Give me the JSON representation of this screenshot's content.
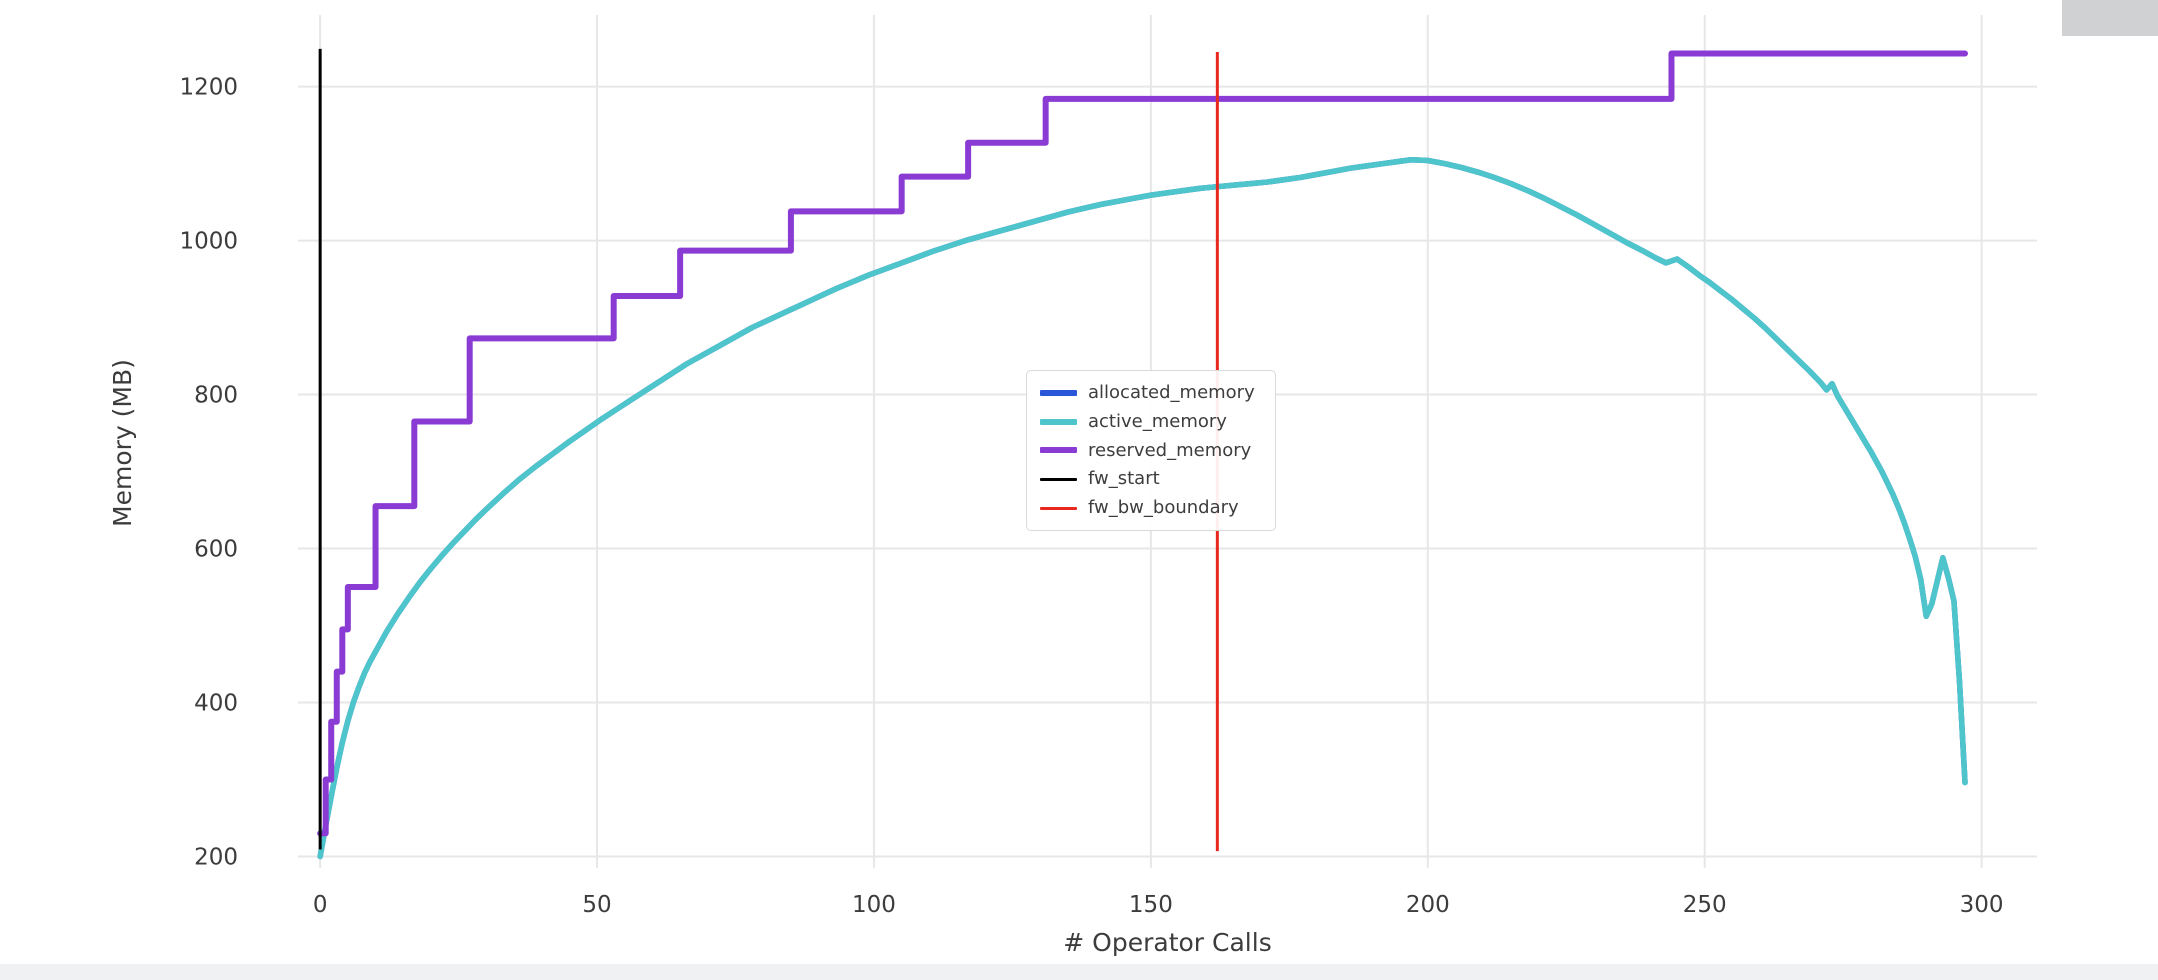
{
  "chart_data": {
    "type": "line",
    "title": "",
    "xlabel": "# Operator Calls",
    "ylabel": "Memory (MB)",
    "xlim": [
      -4,
      310
    ],
    "ylim": [
      185,
      1293
    ],
    "xticks": [
      0,
      50,
      100,
      150,
      200,
      250,
      300
    ],
    "yticks": [
      200,
      400,
      600,
      800,
      1000,
      1200
    ],
    "grid": true,
    "grid_color": "#e7e7e7",
    "legend_position": "center",
    "series": [
      {
        "name": "allocated_memory",
        "color": "#2a56d9",
        "style": "line",
        "points_same_as": "active_memory"
      },
      {
        "name": "active_memory",
        "color": "#4ec5cb",
        "style": "line",
        "points": [
          [
            0,
            200
          ],
          [
            1,
            240
          ],
          [
            2,
            278
          ],
          [
            3,
            315
          ],
          [
            4,
            348
          ],
          [
            5,
            376
          ],
          [
            6,
            400
          ],
          [
            7,
            420
          ],
          [
            8,
            438
          ],
          [
            9,
            453
          ],
          [
            10,
            466
          ],
          [
            12,
            492
          ],
          [
            14,
            515
          ],
          [
            16,
            536
          ],
          [
            18,
            556
          ],
          [
            20,
            574
          ],
          [
            22,
            591
          ],
          [
            24,
            607
          ],
          [
            26,
            622
          ],
          [
            28,
            637
          ],
          [
            30,
            651
          ],
          [
            33,
            671
          ],
          [
            36,
            690
          ],
          [
            39,
            707
          ],
          [
            42,
            723
          ],
          [
            45,
            739
          ],
          [
            48,
            754
          ],
          [
            51,
            769
          ],
          [
            54,
            783
          ],
          [
            57,
            797
          ],
          [
            60,
            811
          ],
          [
            63,
            825
          ],
          [
            66,
            839
          ],
          [
            69,
            851
          ],
          [
            72,
            863
          ],
          [
            75,
            875
          ],
          [
            78,
            887
          ],
          [
            81,
            897
          ],
          [
            84,
            907
          ],
          [
            87,
            917
          ],
          [
            90,
            927
          ],
          [
            93,
            937
          ],
          [
            96,
            946
          ],
          [
            99,
            955
          ],
          [
            102,
            963
          ],
          [
            105,
            971
          ],
          [
            108,
            979
          ],
          [
            111,
            987
          ],
          [
            114,
            994
          ],
          [
            117,
            1001
          ],
          [
            120,
            1007
          ],
          [
            123,
            1013
          ],
          [
            126,
            1019
          ],
          [
            129,
            1025
          ],
          [
            132,
            1031
          ],
          [
            135,
            1037
          ],
          [
            138,
            1042
          ],
          [
            141,
            1047
          ],
          [
            144,
            1051
          ],
          [
            147,
            1055
          ],
          [
            150,
            1059
          ],
          [
            153,
            1062
          ],
          [
            156,
            1065
          ],
          [
            159,
            1068
          ],
          [
            162,
            1070
          ],
          [
            165,
            1072
          ],
          [
            168,
            1074
          ],
          [
            171,
            1076
          ],
          [
            174,
            1079
          ],
          [
            177,
            1082
          ],
          [
            180,
            1086
          ],
          [
            183,
            1090
          ],
          [
            186,
            1094
          ],
          [
            189,
            1097
          ],
          [
            192,
            1100
          ],
          [
            195,
            1103
          ],
          [
            197,
            1105
          ],
          [
            200,
            1104
          ],
          [
            203,
            1100
          ],
          [
            206,
            1095
          ],
          [
            209,
            1089
          ],
          [
            212,
            1082
          ],
          [
            215,
            1074
          ],
          [
            218,
            1065
          ],
          [
            221,
            1055
          ],
          [
            224,
            1044
          ],
          [
            227,
            1033
          ],
          [
            230,
            1021
          ],
          [
            233,
            1009
          ],
          [
            236,
            997
          ],
          [
            239,
            986
          ],
          [
            241,
            978
          ],
          [
            243,
            971
          ],
          [
            245,
            976
          ],
          [
            247,
            966
          ],
          [
            249,
            955
          ],
          [
            251,
            945
          ],
          [
            253,
            934
          ],
          [
            255,
            923
          ],
          [
            257,
            911
          ],
          [
            259,
            899
          ],
          [
            261,
            886
          ],
          [
            263,
            872
          ],
          [
            265,
            858
          ],
          [
            267,
            844
          ],
          [
            269,
            830
          ],
          [
            271,
            815
          ],
          [
            272,
            806
          ],
          [
            273,
            814
          ],
          [
            274,
            798
          ],
          [
            276,
            774
          ],
          [
            278,
            750
          ],
          [
            280,
            726
          ],
          [
            282,
            700
          ],
          [
            284,
            670
          ],
          [
            285,
            653
          ],
          [
            286,
            634
          ],
          [
            287,
            613
          ],
          [
            288,
            590
          ],
          [
            289,
            560
          ],
          [
            290,
            512
          ],
          [
            291,
            528
          ],
          [
            292,
            558
          ],
          [
            293,
            588
          ],
          [
            294,
            562
          ],
          [
            295,
            532
          ],
          [
            296,
            428
          ],
          [
            297,
            296
          ]
        ]
      },
      {
        "name": "reserved_memory",
        "color": "#8a3bd4",
        "style": "step",
        "points": [
          [
            0,
            230
          ],
          [
            1,
            300
          ],
          [
            2,
            375
          ],
          [
            3,
            440
          ],
          [
            4,
            495
          ],
          [
            5,
            550
          ],
          [
            10,
            655
          ],
          [
            17,
            765
          ],
          [
            27,
            873
          ],
          [
            53,
            928
          ],
          [
            65,
            987
          ],
          [
            85,
            1038
          ],
          [
            105,
            1083
          ],
          [
            117,
            1127
          ],
          [
            131,
            1184
          ],
          [
            244,
            1243
          ]
        ],
        "x_end": 297
      }
    ],
    "vlines": [
      {
        "name": "fw_start",
        "x": 0,
        "color": "#000000",
        "y0": 209,
        "y1": 1249
      },
      {
        "name": "fw_bw_boundary",
        "x": 162,
        "color": "#e8281e",
        "y0": 207,
        "y1": 1245
      }
    ],
    "legend_items": [
      {
        "label": "allocated_memory",
        "color": "#2a56d9",
        "weight": "thick"
      },
      {
        "label": "active_memory",
        "color": "#4ec5cb",
        "weight": "thick"
      },
      {
        "label": "reserved_memory",
        "color": "#8a3bd4",
        "weight": "thick"
      },
      {
        "label": "fw_start",
        "color": "#000000",
        "weight": "thin"
      },
      {
        "label": "fw_bw_boundary",
        "color": "#e8281e",
        "weight": "thin"
      }
    ]
  }
}
